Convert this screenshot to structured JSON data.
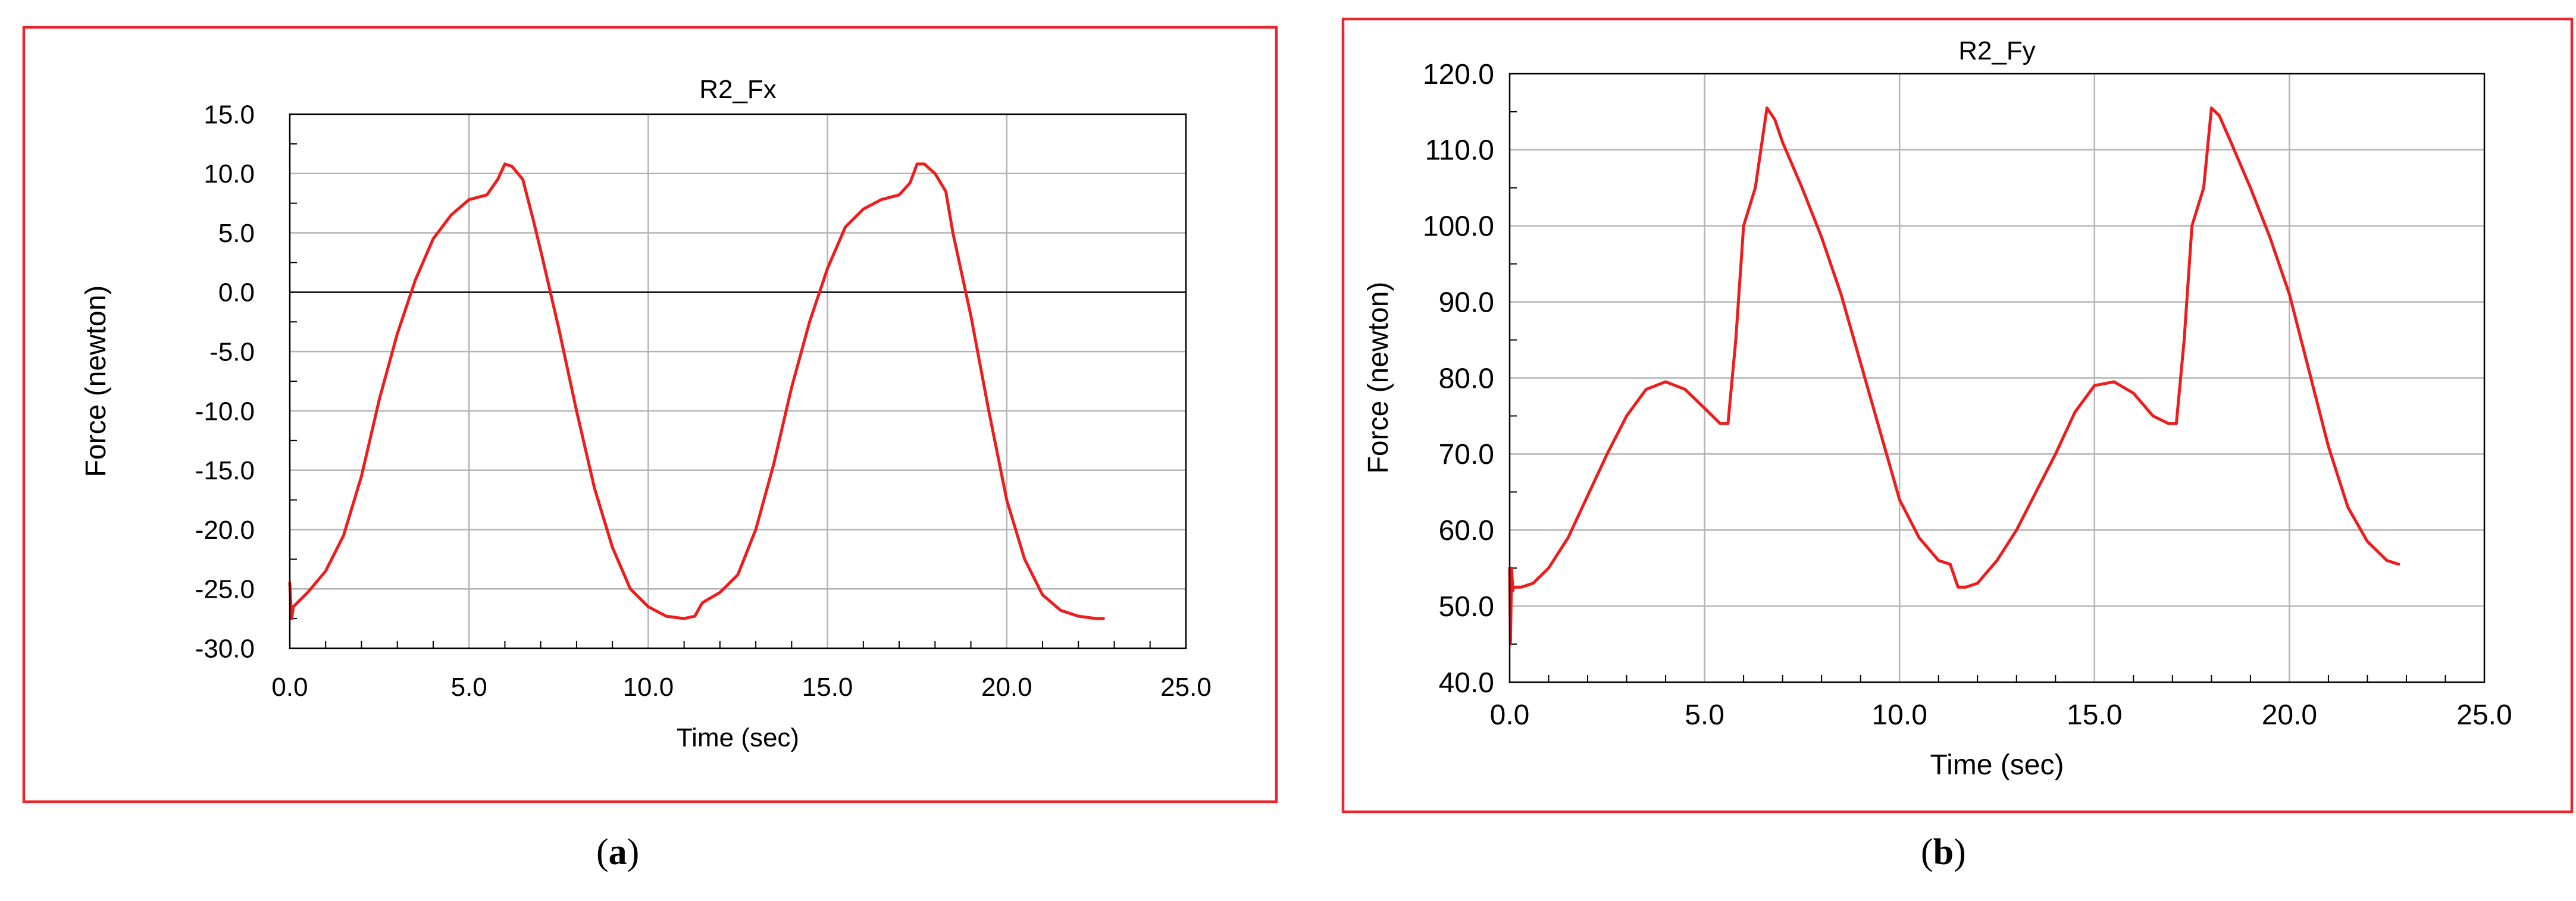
{
  "panels": [
    {
      "caption_letter": "a",
      "frame_color": "#e8262b",
      "line_color": "#ee1c1c",
      "chart_data": {
        "type": "line",
        "title": "R2_Fx",
        "xlabel": "Time (sec)",
        "ylabel": "Force (newton)",
        "xlim": [
          0,
          25
        ],
        "ylim": [
          -30,
          15
        ],
        "x_ticks": [
          "0.0",
          "5.0",
          "10.0",
          "15.0",
          "20.0",
          "25.0"
        ],
        "y_ticks": [
          "15.0",
          "10.0",
          "5.0",
          "0.0",
          "-5.0",
          "-10.0",
          "-15.0",
          "-20.0",
          "-25.0",
          "-30.0"
        ],
        "zero_line": true,
        "grid": true,
        "series": [
          {
            "x": [
              0,
              0.05,
              0.1,
              0.2,
              0.5,
              1.0,
              1.5,
              2.0,
              2.5,
              3.0,
              3.5,
              4.0,
              4.5,
              5.0,
              5.5,
              5.8,
              6.0,
              6.2,
              6.5,
              6.8,
              7.0,
              7.5,
              8.0,
              8.5,
              9.0,
              9.5,
              10.0,
              10.5,
              11.0,
              11.3,
              11.5,
              11.6,
              12.0,
              12.5,
              13.0,
              13.5,
              14.0,
              14.5,
              15.0,
              15.5,
              16.0,
              16.5,
              17.0,
              17.3,
              17.5,
              17.7,
              18.0,
              18.3,
              18.5,
              19.0,
              19.5,
              20.0,
              20.5,
              21.0,
              21.5,
              22.0,
              22.5,
              22.7
            ],
            "y": [
              -24.5,
              -27.5,
              -26.5,
              -26.2,
              -25.3,
              -23.5,
              -20.5,
              -15.5,
              -9.0,
              -3.5,
              1.0,
              4.5,
              6.5,
              7.8,
              8.2,
              9.5,
              10.8,
              10.6,
              9.5,
              6.0,
              3.5,
              -3.0,
              -10.0,
              -16.5,
              -21.5,
              -25.0,
              -26.5,
              -27.3,
              -27.5,
              -27.3,
              -26.2,
              -26.0,
              -25.3,
              -23.8,
              -20.0,
              -14.5,
              -8.0,
              -2.5,
              2.0,
              5.5,
              7.0,
              7.8,
              8.2,
              9.2,
              10.8,
              10.8,
              10.0,
              8.5,
              5.0,
              -2.0,
              -10.0,
              -17.5,
              -22.5,
              -25.5,
              -26.8,
              -27.3,
              -27.5,
              -27.5
            ]
          }
        ]
      }
    },
    {
      "caption_letter": "b",
      "frame_color": "#e8262b",
      "line_color": "#ee1c1c",
      "chart_data": {
        "type": "line",
        "title": "R2_Fy",
        "xlabel": "Time (sec)",
        "ylabel": "Force (newton)",
        "xlim": [
          0,
          25
        ],
        "ylim": [
          40,
          120
        ],
        "x_ticks": [
          "0.0",
          "5.0",
          "10.0",
          "15.0",
          "20.0",
          "25.0"
        ],
        "y_ticks": [
          "120.0",
          "110.0",
          "100.0",
          "90.0",
          "80.0",
          "70.0",
          "60.0",
          "50.0",
          "40.0"
        ],
        "zero_line": false,
        "grid": true,
        "series": [
          {
            "x": [
              0,
              0.02,
              0.05,
              0.08,
              0.1,
              0.3,
              0.6,
              1.0,
              1.5,
              2.0,
              2.5,
              3.0,
              3.5,
              4.0,
              4.5,
              5.0,
              5.4,
              5.6,
              5.8,
              6.0,
              6.3,
              6.6,
              6.8,
              7.0,
              7.5,
              8.0,
              8.5,
              9.0,
              9.5,
              10.0,
              10.5,
              11.0,
              11.3,
              11.5,
              11.7,
              12.0,
              12.5,
              13.0,
              13.5,
              14.0,
              14.5,
              15.0,
              15.5,
              16.0,
              16.5,
              16.9,
              17.1,
              17.3,
              17.5,
              17.8,
              18.0,
              18.2,
              18.5,
              19.0,
              19.5,
              20.0,
              20.5,
              21.0,
              21.5,
              22.0,
              22.5,
              22.8
            ],
            "y": [
              55.0,
              45.0,
              55.0,
              52.0,
              52.5,
              52.5,
              53.0,
              55.0,
              59.0,
              64.5,
              70.0,
              75.0,
              78.5,
              79.5,
              78.5,
              76.0,
              74.0,
              74.0,
              85.0,
              100.0,
              105.0,
              115.5,
              114.0,
              111.0,
              105.0,
              98.5,
              91.0,
              82.0,
              73.0,
              64.0,
              59.0,
              56.0,
              55.5,
              52.5,
              52.5,
              53.0,
              56.0,
              60.0,
              65.0,
              70.0,
              75.5,
              79.0,
              79.5,
              78.0,
              75.0,
              74.0,
              74.0,
              85.0,
              100.0,
              105.0,
              115.5,
              114.5,
              111.0,
              105.0,
              98.5,
              91.0,
              81.0,
              71.0,
              63.0,
              58.5,
              56.0,
              55.5
            ]
          }
        ]
      }
    }
  ]
}
